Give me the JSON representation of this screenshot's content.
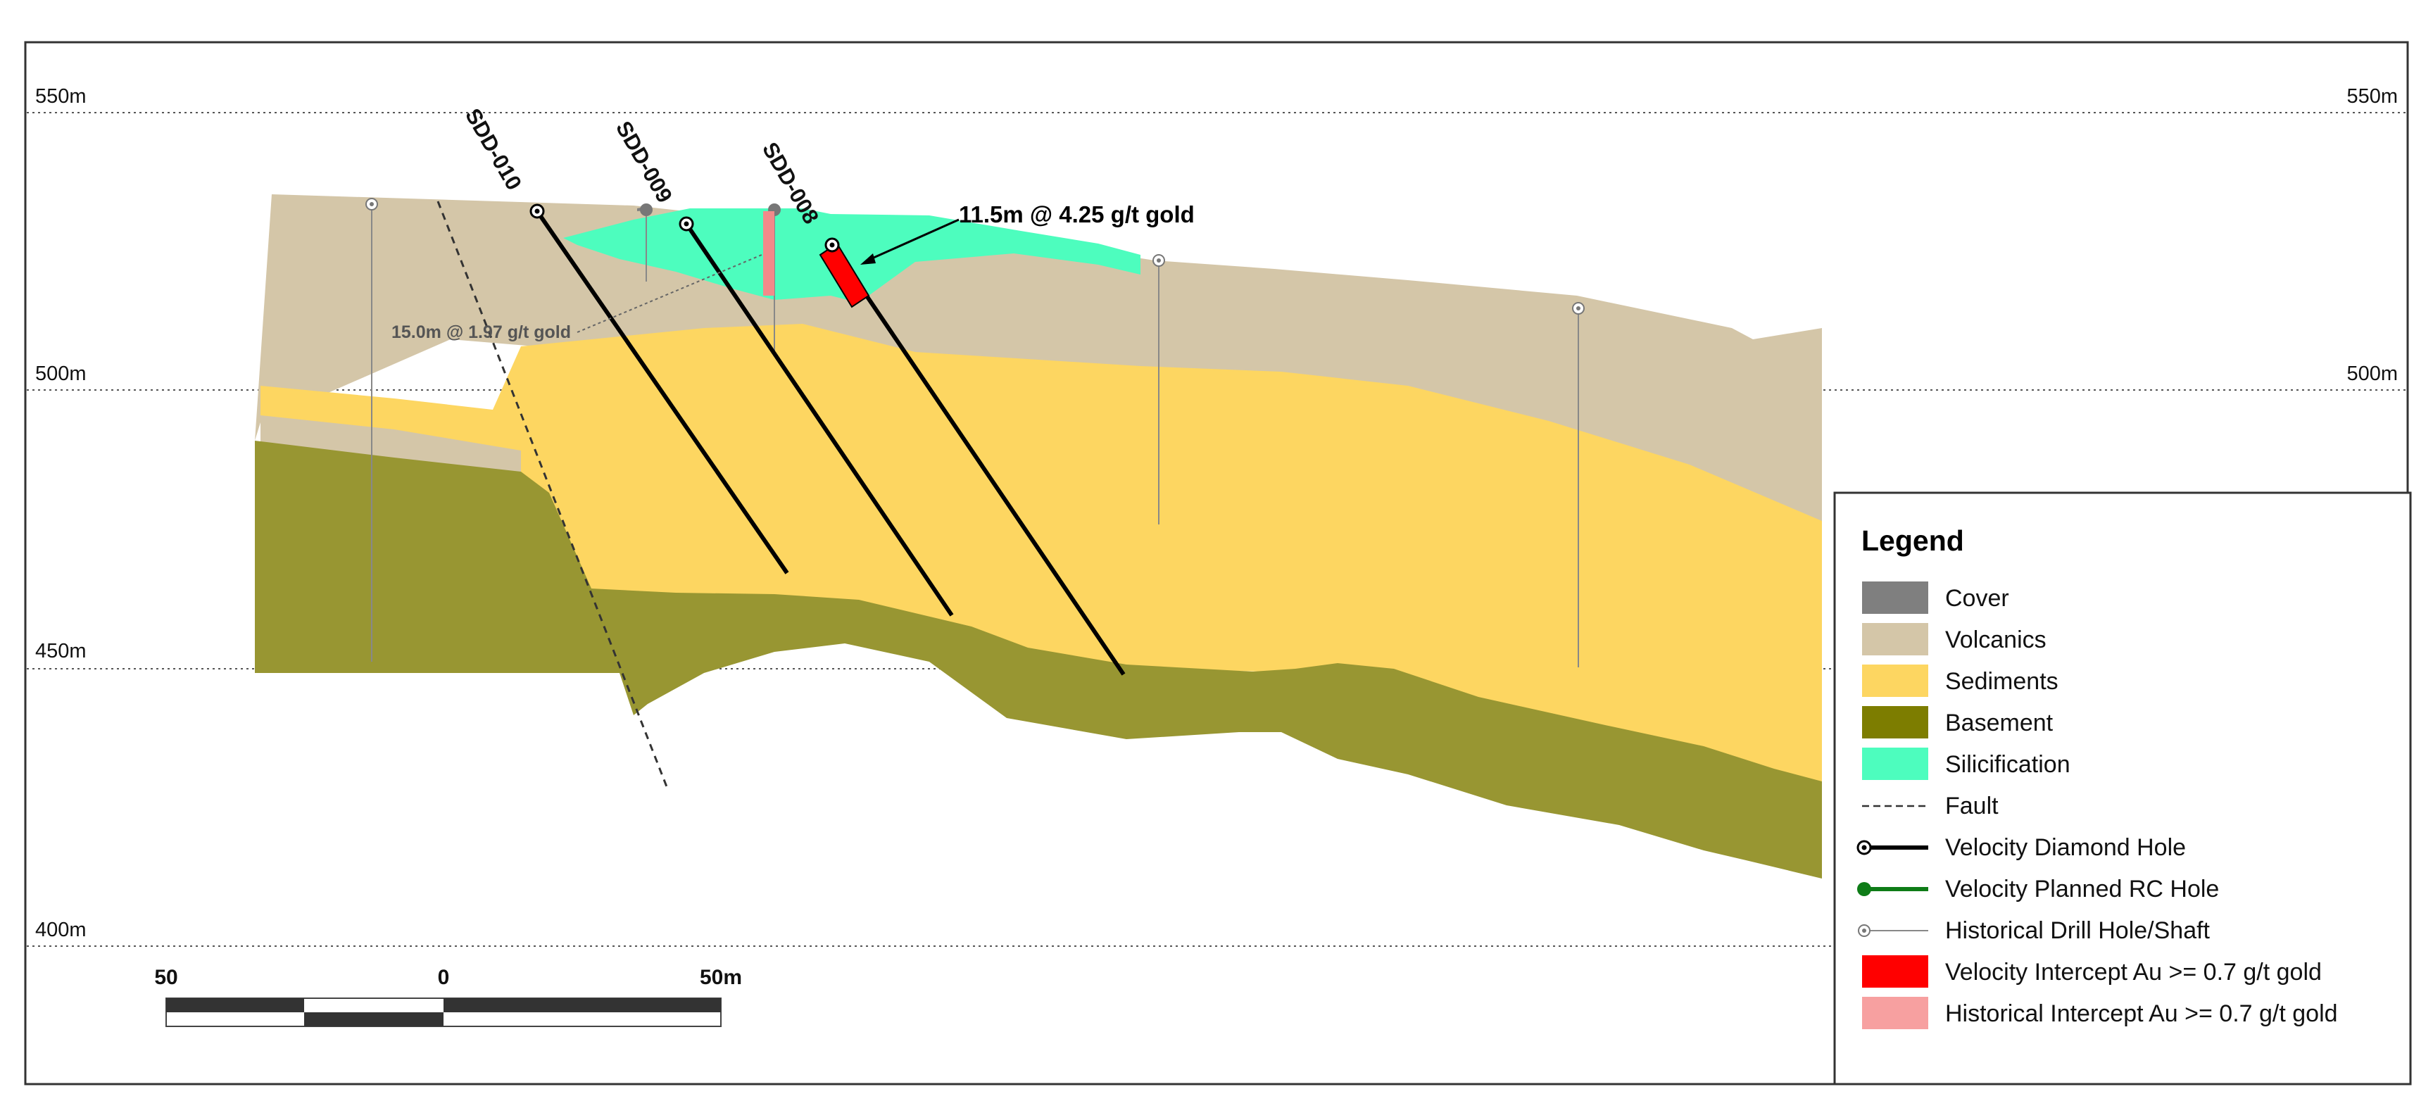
{
  "elevations": {
    "e550": "550m",
    "e500": "500m",
    "e450": "450m",
    "e400": "400m"
  },
  "drill_holes": {
    "sdd010": "SDD-010",
    "sdd009": "SDD-009",
    "sdd008": "SDD-008"
  },
  "annotations": {
    "velocity_intercept": "11.5m @ 4.25 g/t gold",
    "historical_intercept": "15.0m @ 1.97 g/t gold"
  },
  "scale_bar": {
    "left": "50",
    "center": "0",
    "right": "50m"
  },
  "legend": {
    "title": "Legend",
    "items": [
      {
        "label": "Cover",
        "color": "#7f7f7f",
        "symbol": "box"
      },
      {
        "label": "Volcanics",
        "color": "#d4c6a8",
        "symbol": "box"
      },
      {
        "label": "Sediments",
        "color": "#fdd661",
        "symbol": "box"
      },
      {
        "label": "Basement",
        "color": "#7d7d00",
        "symbol": "box"
      },
      {
        "label": "Silicification",
        "color": "#4dfdbe",
        "symbol": "box"
      },
      {
        "label": "Fault",
        "color": "#333333",
        "symbol": "dashed-line"
      },
      {
        "label": "Velocity Diamond Hole",
        "color": "#000000",
        "symbol": "collar-line"
      },
      {
        "label": "Velocity Planned RC Hole",
        "color": "#0e7c17",
        "symbol": "dot-line"
      },
      {
        "label": "Historical Drill Hole/Shaft",
        "color": "#888888",
        "symbol": "thin-collar-line"
      },
      {
        "label": "Velocity Intercept Au >= 0.7 g/t gold",
        "color": "#ff0000",
        "symbol": "box"
      },
      {
        "label": "Historical Intercept Au >= 0.7 g/t gold",
        "color": "#f7a0a0",
        "symbol": "box"
      }
    ]
  },
  "colors": {
    "volcanics": "#d4c6a8",
    "sediments": "#fdd661",
    "basement": "#989632",
    "silicification": "#4dfdbe",
    "velocity_intercept": "#ff0000",
    "historical_intercept": "#f28a8a"
  }
}
